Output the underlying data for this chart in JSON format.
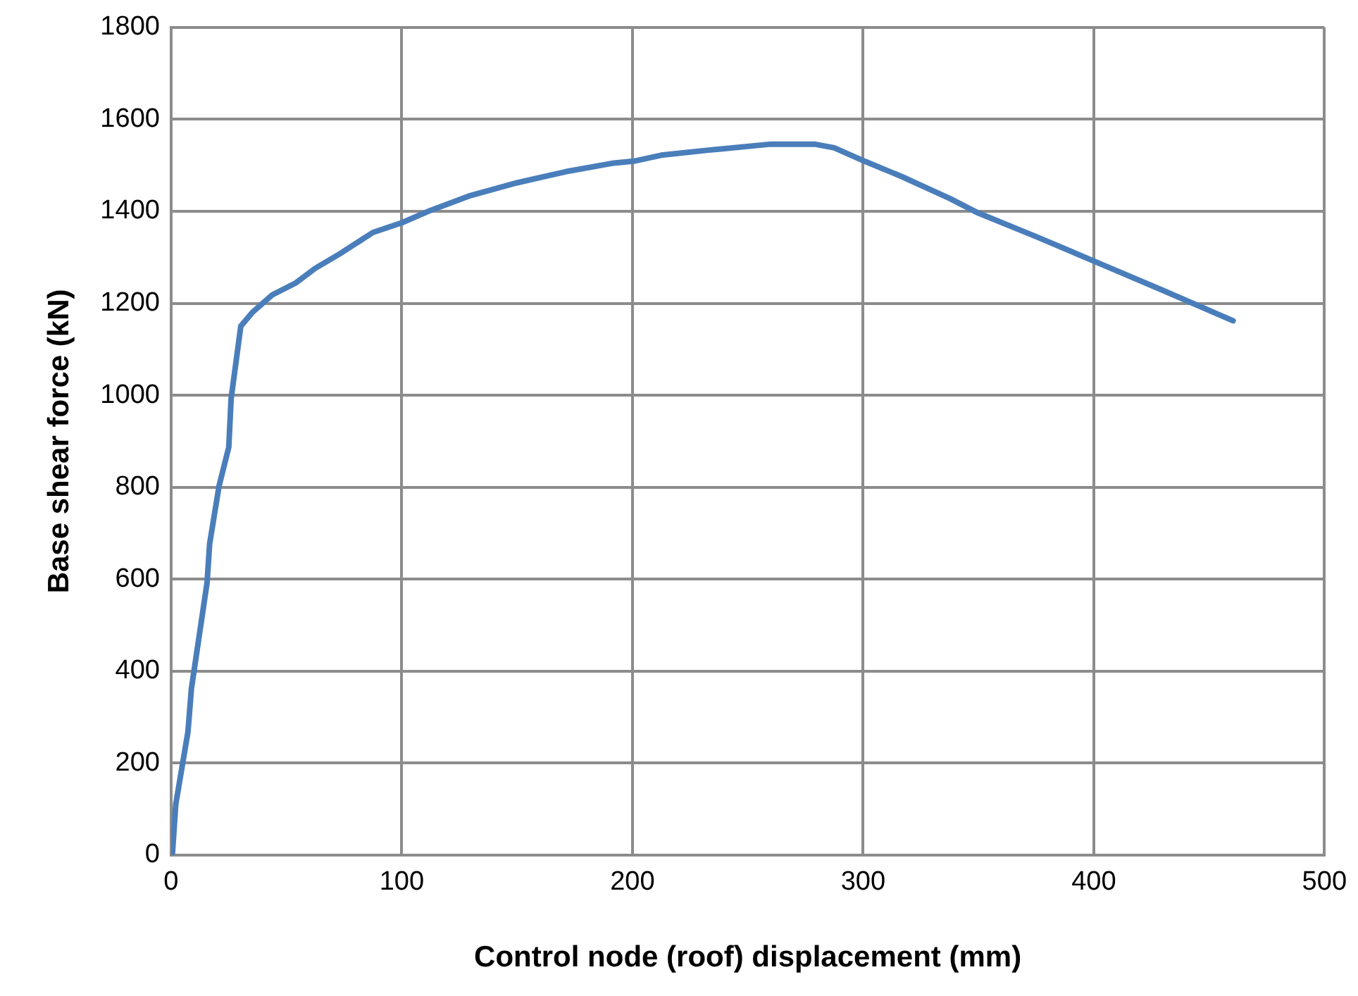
{
  "chart_data": {
    "type": "line",
    "xlabel": "Control node (roof) displacement (mm)",
    "ylabel": "Base shear force (kN)",
    "x": [
      0,
      0.6,
      2,
      7.3,
      8.8,
      15.6,
      16.7,
      20.8,
      25,
      26,
      30.2,
      35.4,
      43.8,
      54,
      62.5,
      73,
      87.5,
      100,
      112.5,
      129,
      150,
      171,
      192,
      200.6,
      212.5,
      233,
      260,
      279,
      287.5,
      300.6,
      317,
      337.5,
      350,
      375,
      400.4,
      430,
      460.4
    ],
    "series": [
      {
        "color": "#4a7ebb",
        "values": [
          0,
          5,
          110,
          268,
          362,
          593,
          677,
          803,
          887,
          992,
          1150,
          1181,
          1218,
          1244,
          1276,
          1307,
          1354,
          1375,
          1402,
          1433,
          1462,
          1486,
          1505,
          1509,
          1522,
          1533,
          1546,
          1546,
          1538,
          1509,
          1475,
          1428,
          1396,
          1345,
          1291,
          1228,
          1162
        ]
      }
    ],
    "xlim": [
      0,
      500
    ],
    "xticks": [
      0,
      100,
      200,
      300,
      400,
      500
    ],
    "ylim": [
      0,
      1800
    ],
    "yticks": [
      0,
      200,
      400,
      600,
      800,
      1000,
      1200,
      1400,
      1600,
      1800
    ],
    "grid": true,
    "legend": false,
    "marker": "none",
    "line_style": "solid"
  }
}
